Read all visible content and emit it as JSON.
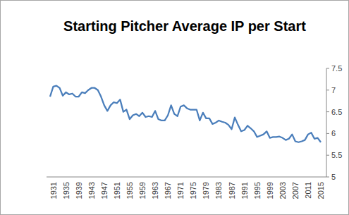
{
  "chart_data": {
    "type": "line",
    "title": "Starting Pitcher Average IP per Start",
    "categories": [
      null,
      "1931",
      null,
      null,
      null,
      "1935",
      null,
      null,
      null,
      "1939",
      null,
      null,
      null,
      "1943",
      null,
      null,
      null,
      "1947",
      null,
      null,
      null,
      "1951",
      null,
      null,
      null,
      "1955",
      null,
      null,
      null,
      "1959",
      null,
      null,
      null,
      "1963",
      null,
      null,
      null,
      "1967",
      null,
      null,
      null,
      "1971",
      null,
      null,
      null,
      "1975",
      null,
      null,
      null,
      "1979",
      null,
      null,
      null,
      "1983",
      null,
      null,
      null,
      "1987",
      null,
      null,
      null,
      "1991",
      null,
      null,
      null,
      "1995",
      null,
      null,
      null,
      "1999",
      null,
      null,
      null,
      "2003",
      null,
      null,
      null,
      "2007",
      null,
      null,
      null,
      "2011",
      null,
      null,
      null,
      "2015"
    ],
    "values": [
      6.85,
      7.08,
      7.1,
      7.05,
      6.87,
      6.95,
      6.9,
      6.92,
      6.85,
      6.85,
      6.95,
      6.93,
      7.0,
      7.05,
      7.05,
      7.0,
      6.85,
      6.65,
      6.52,
      6.65,
      6.72,
      6.7,
      6.78,
      6.5,
      6.55,
      6.33,
      6.42,
      6.45,
      6.4,
      6.48,
      6.38,
      6.4,
      6.38,
      6.52,
      6.33,
      6.3,
      6.3,
      6.42,
      6.65,
      6.45,
      6.4,
      6.62,
      6.65,
      6.58,
      6.55,
      6.55,
      6.55,
      6.3,
      6.48,
      6.35,
      6.35,
      6.22,
      6.25,
      6.3,
      6.27,
      6.25,
      6.2,
      6.1,
      6.37,
      6.2,
      6.05,
      6.08,
      6.18,
      6.12,
      6.05,
      5.92,
      5.95,
      5.98,
      6.05,
      5.9,
      5.92,
      5.92,
      5.93,
      5.9,
      5.85,
      5.88,
      5.98,
      5.82,
      5.8,
      5.82,
      5.85,
      5.98,
      6.02,
      5.88,
      5.9,
      5.8
    ],
    "color": "#4a7ebb",
    "ylim": [
      5,
      7.5
    ],
    "yticks": [
      5,
      5.5,
      6,
      6.5,
      7,
      7.5
    ],
    "grid": false
  }
}
